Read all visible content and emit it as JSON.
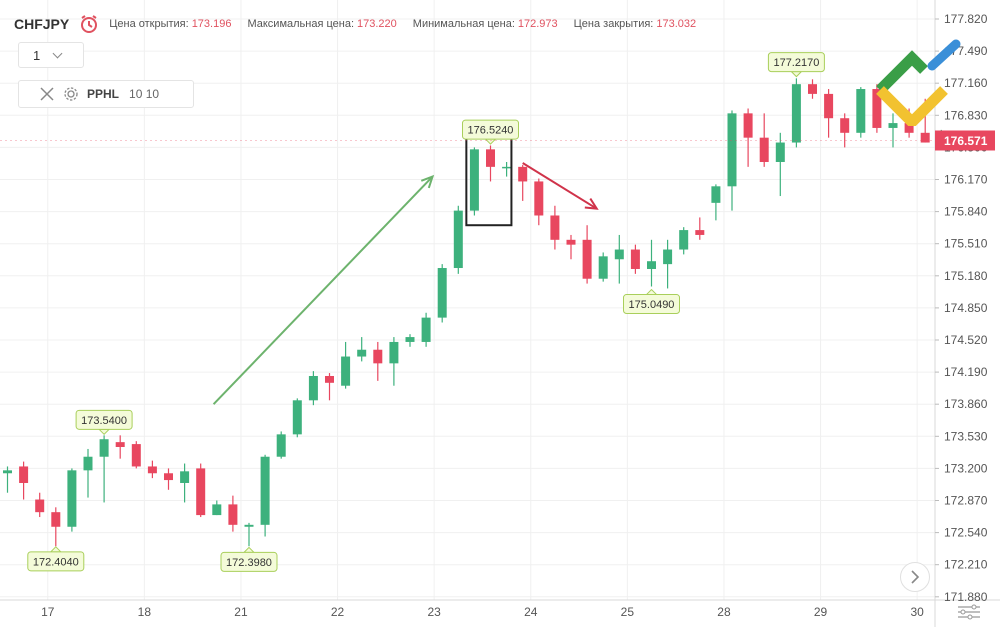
{
  "header": {
    "symbol": "CHFJPY",
    "open_label": "Цена открытия:",
    "open_value": "173.196",
    "high_label": "Максимальная цена:",
    "high_value": "173.220",
    "low_label": "Минимальная цена:",
    "low_value": "172.973",
    "close_label": "Цена закрытия:",
    "close_value": "173.032"
  },
  "timeframe": {
    "value": "1"
  },
  "indicator": {
    "name": "PPHL",
    "params": "10 10"
  },
  "colors": {
    "up": "#3db17d",
    "down": "#e8475f",
    "price_tag": "#e8475f"
  },
  "chart_data": {
    "type": "candlestick",
    "current_price": "176.571",
    "y_ticks": [
      "177.820",
      "177.490",
      "177.160",
      "176.830",
      "176.500",
      "176.170",
      "175.840",
      "175.510",
      "175.180",
      "174.850",
      "174.520",
      "174.190",
      "173.860",
      "173.530",
      "173.200",
      "172.870",
      "172.540",
      "172.210",
      "171.880"
    ],
    "x_ticks": [
      {
        "label": "17",
        "idx": 2
      },
      {
        "label": "18",
        "idx": 8
      },
      {
        "label": "21",
        "idx": 14
      },
      {
        "label": "22",
        "idx": 20
      },
      {
        "label": "23",
        "idx": 26
      },
      {
        "label": "24",
        "idx": 32
      },
      {
        "label": "25",
        "idx": 38
      },
      {
        "label": "28",
        "idx": 44
      },
      {
        "label": "29",
        "idx": 50
      },
      {
        "label": "30",
        "idx": 56
      }
    ],
    "candles": [
      [
        173.15,
        173.18,
        173.22,
        172.95
      ],
      [
        173.22,
        173.05,
        173.27,
        172.88
      ],
      [
        172.88,
        172.75,
        172.95,
        172.7
      ],
      [
        172.75,
        172.6,
        172.8,
        172.4
      ],
      [
        172.6,
        173.18,
        173.2,
        172.55
      ],
      [
        173.18,
        173.32,
        173.4,
        172.9
      ],
      [
        173.32,
        173.5,
        173.54,
        172.85
      ],
      [
        173.47,
        173.42,
        173.54,
        173.3
      ],
      [
        173.45,
        173.22,
        173.48,
        173.2
      ],
      [
        173.22,
        173.15,
        173.28,
        173.1
      ],
      [
        173.15,
        173.08,
        173.2,
        172.98
      ],
      [
        173.05,
        173.17,
        173.25,
        172.85
      ],
      [
        173.2,
        172.72,
        173.25,
        172.7
      ],
      [
        172.72,
        172.83,
        172.87,
        172.72
      ],
      [
        172.83,
        172.62,
        172.92,
        172.55
      ],
      [
        172.6,
        172.62,
        172.64,
        172.4
      ],
      [
        172.62,
        173.32,
        173.34,
        172.5
      ],
      [
        173.32,
        173.55,
        173.58,
        173.3
      ],
      [
        173.55,
        173.9,
        173.92,
        173.52
      ],
      [
        173.9,
        174.15,
        174.2,
        173.85
      ],
      [
        174.15,
        174.08,
        174.18,
        173.9
      ],
      [
        174.05,
        174.35,
        174.5,
        174.02
      ],
      [
        174.35,
        174.42,
        174.55,
        174.3
      ],
      [
        174.42,
        174.28,
        174.5,
        174.1
      ],
      [
        174.28,
        174.5,
        174.55,
        174.05
      ],
      [
        174.5,
        174.55,
        174.58,
        174.45
      ],
      [
        174.5,
        174.75,
        174.8,
        174.45
      ],
      [
        174.75,
        175.26,
        175.3,
        174.7
      ],
      [
        175.26,
        175.85,
        175.9,
        175.2
      ],
      [
        175.85,
        176.48,
        176.5,
        175.8
      ],
      [
        176.48,
        176.3,
        176.52,
        176.15
      ],
      [
        176.3,
        176.3,
        176.35,
        176.2
      ],
      [
        176.3,
        176.15,
        176.32,
        175.95
      ],
      [
        176.15,
        175.8,
        176.18,
        175.7
      ],
      [
        175.8,
        175.55,
        175.9,
        175.45
      ],
      [
        175.55,
        175.5,
        175.6,
        175.35
      ],
      [
        175.55,
        175.15,
        175.7,
        175.1
      ],
      [
        175.15,
        175.38,
        175.42,
        175.12
      ],
      [
        175.35,
        175.45,
        175.6,
        175.1
      ],
      [
        175.45,
        175.25,
        175.5,
        175.2
      ],
      [
        175.25,
        175.33,
        175.55,
        175.07
      ],
      [
        175.3,
        175.45,
        175.55,
        175.05
      ],
      [
        175.45,
        175.65,
        175.68,
        175.4
      ],
      [
        175.65,
        175.6,
        175.78,
        175.55
      ],
      [
        175.93,
        176.1,
        176.12,
        175.75
      ],
      [
        176.1,
        176.85,
        176.88,
        175.85
      ],
      [
        176.85,
        176.6,
        176.9,
        176.3
      ],
      [
        176.6,
        176.35,
        176.85,
        176.3
      ],
      [
        176.35,
        176.55,
        176.65,
        176.0
      ],
      [
        176.55,
        177.15,
        177.21,
        176.5
      ],
      [
        177.15,
        177.05,
        177.2,
        177.0
      ],
      [
        177.05,
        176.8,
        177.1,
        176.6
      ],
      [
        176.8,
        176.65,
        176.85,
        176.5
      ],
      [
        176.65,
        177.1,
        177.12,
        176.6
      ],
      [
        177.1,
        176.7,
        177.15,
        176.65
      ],
      [
        176.7,
        176.75,
        176.85,
        176.5
      ],
      [
        176.75,
        176.65,
        176.9,
        176.6
      ],
      [
        176.65,
        176.55,
        177.0,
        176.55
      ],
      [
        176.55,
        176.62,
        176.68,
        176.5
      ]
    ],
    "markers": [
      {
        "text": "173.5400",
        "idx": 6,
        "price": 173.54,
        "pos": "above"
      },
      {
        "text": "172.4040",
        "idx": 3,
        "price": 172.404,
        "pos": "below"
      },
      {
        "text": "172.3980",
        "idx": 15,
        "price": 172.398,
        "pos": "below"
      },
      {
        "text": "176.5240",
        "idx": 30,
        "price": 176.524,
        "pos": "above"
      },
      {
        "text": "175.0490",
        "idx": 40,
        "price": 175.049,
        "pos": "below"
      },
      {
        "text": "177.2170",
        "idx": 49,
        "price": 177.217,
        "pos": "above"
      }
    ],
    "arrows": [
      {
        "color": "#6db36d",
        "from": [
          12.8,
          173.86
        ],
        "to": [
          26.4,
          176.2
        ]
      },
      {
        "color": "#d0334a",
        "from": [
          32.0,
          176.34
        ],
        "to": [
          36.6,
          175.87
        ]
      }
    ],
    "highlight_box": {
      "from_idx": 28.5,
      "to_idx": 31.3,
      "price_top": 176.68,
      "price_bottom": 175.7
    }
  }
}
